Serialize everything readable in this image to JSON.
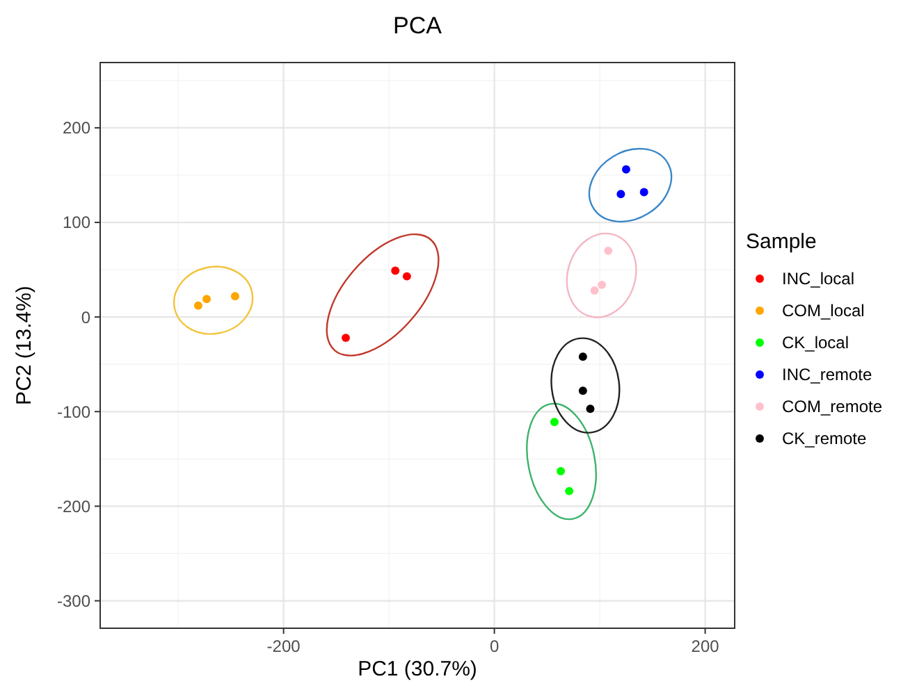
{
  "chart_data": {
    "type": "scatter",
    "title": "PCA",
    "xlabel": "PC1 (30.7%)",
    "ylabel": "PC2 (13.4%)",
    "legend_title": "Sample",
    "legend": "right",
    "grid": true,
    "marker": "circle",
    "xlim": [
      -374,
      228
    ],
    "ylim": [
      -329,
      269
    ],
    "xticks": [
      -200,
      0,
      200
    ],
    "yticks": [
      -300,
      -200,
      -100,
      0,
      100,
      200
    ],
    "series": [
      {
        "name": "INC_local",
        "color": "#ff0000",
        "x": [
          -141,
          -94,
          -83
        ],
        "values": [
          -22,
          49,
          43
        ]
      },
      {
        "name": "COM_local",
        "color": "#ffa500",
        "x": [
          -281,
          -273,
          -246
        ],
        "values": [
          12,
          19,
          22
        ]
      },
      {
        "name": "CK_local",
        "color": "#00ff00",
        "x": [
          57,
          63,
          71
        ],
        "values": [
          -111,
          -163,
          -184
        ]
      },
      {
        "name": "INC_remote",
        "color": "#0000ff",
        "x": [
          125,
          120,
          142
        ],
        "values": [
          156,
          130,
          132
        ]
      },
      {
        "name": "COM_remote",
        "color": "#ffc0cb",
        "x": [
          108,
          102,
          95
        ],
        "values": [
          70,
          34,
          28
        ]
      },
      {
        "name": "CK_remote",
        "color": "#000000",
        "x": [
          84,
          84,
          91
        ],
        "values": [
          -42,
          -78,
          -97
        ]
      }
    ]
  }
}
